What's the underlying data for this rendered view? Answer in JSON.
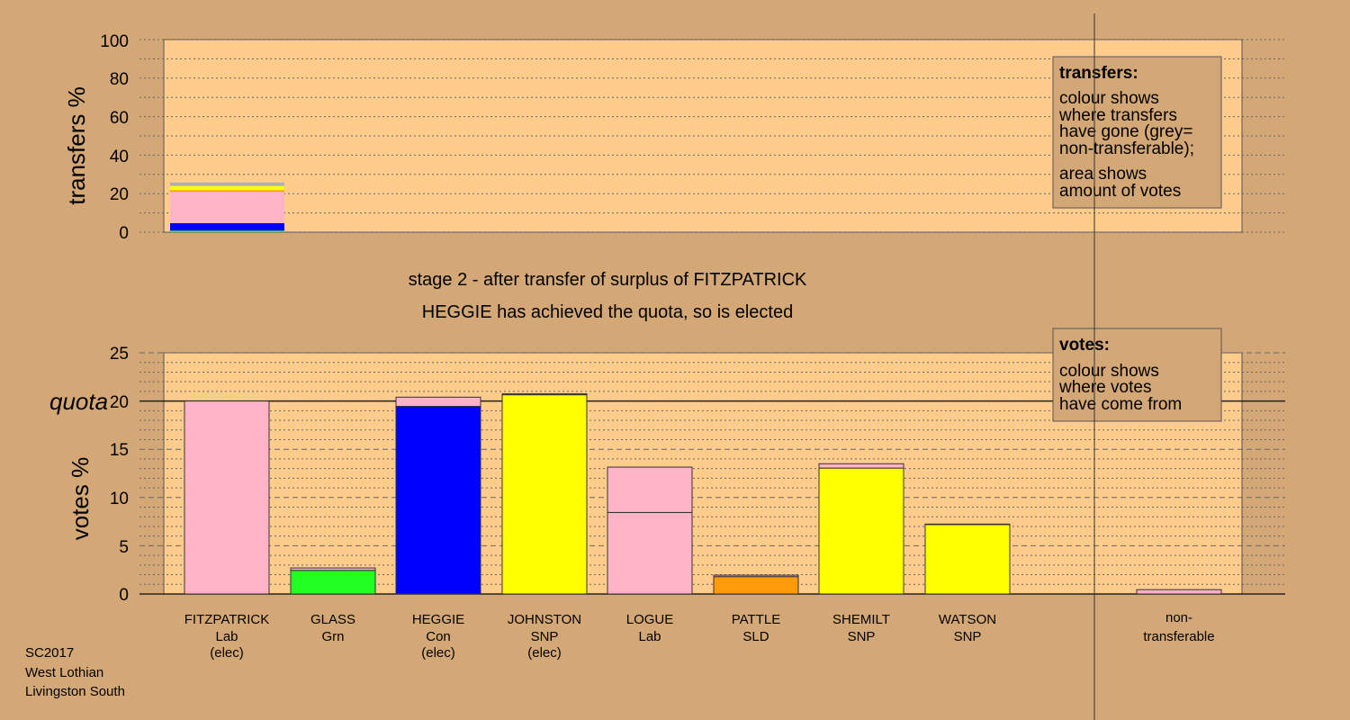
{
  "colors": {
    "background": "#D4A876",
    "plot_area": "#FFCC8C",
    "Lab": "#FFB3C6",
    "Con": "#0000FF",
    "SNP": "#FFFF00",
    "Grn": "#22FF22",
    "SLD": "#FF9A08",
    "nontransferable": "#B0B0B0"
  },
  "top_panel": {
    "ylabel": "transfers %",
    "ticks": [
      "0",
      "20",
      "40",
      "60",
      "80",
      "100"
    ]
  },
  "bottom_panel": {
    "ylabel": "votes %",
    "quota_label": "quota",
    "ticks": [
      "0",
      "5",
      "10",
      "15",
      "20",
      "25"
    ]
  },
  "stage_text": {
    "line1": "stage 2 - after transfer of surplus of FITZPATRICK",
    "line2": "HEGGIE has achieved the quota, so is elected"
  },
  "legend_transfers": {
    "title": "transfers:",
    "lines": [
      "colour shows",
      "where transfers",
      "have gone (grey=",
      "non-transferable);",
      "area shows",
      "amount of votes"
    ]
  },
  "legend_votes": {
    "title": "votes:",
    "lines": [
      "colour shows",
      "where votes",
      "have come from"
    ]
  },
  "candidates": [
    {
      "name": "FITZPATRICK",
      "party": "Lab",
      "status": "(elec)"
    },
    {
      "name": "GLASS",
      "party": "Grn",
      "status": ""
    },
    {
      "name": "HEGGIE",
      "party": "Con",
      "status": "(elec)"
    },
    {
      "name": "JOHNSTON",
      "party": "SNP",
      "status": "(elec)"
    },
    {
      "name": "LOGUE",
      "party": "Lab",
      "status": ""
    },
    {
      "name": "PATTLE",
      "party": "SLD",
      "status": ""
    },
    {
      "name": "SHEMILT",
      "party": "SNP",
      "status": ""
    },
    {
      "name": "WATSON",
      "party": "SNP",
      "status": ""
    }
  ],
  "nontransferable_label": [
    "non-",
    "transferable"
  ],
  "footer": [
    "SC2017",
    "West Lothian",
    "Livingston South"
  ],
  "chart_data": [
    {
      "type": "bar",
      "panel": "transfers",
      "ylabel": "transfers %",
      "ylim": [
        0,
        100
      ],
      "categories": [
        "FITZPATRICK"
      ],
      "series": [
        {
          "name": "Grn",
          "color": "#22FF22",
          "values": [
            0.8
          ]
        },
        {
          "name": "Con",
          "color": "#0000FF",
          "values": [
            3.9
          ]
        },
        {
          "name": "Lab",
          "color": "#FFB3C6",
          "values": [
            16.3
          ]
        },
        {
          "name": "SLD",
          "color": "#FF9A08",
          "values": [
            0.8
          ]
        },
        {
          "name": "SNP",
          "color": "#FFFF00",
          "values": [
            2.2
          ]
        },
        {
          "name": "non-transferable",
          "color": "#B0B0B0",
          "values": [
            1.8
          ]
        }
      ]
    },
    {
      "type": "bar",
      "panel": "votes",
      "ylabel": "votes %",
      "ylim": [
        0,
        25
      ],
      "quota": 20.0,
      "categories": [
        "FITZPATRICK",
        "GLASS",
        "HEGGIE",
        "JOHNSTON",
        "LOGUE",
        "PATTLE",
        "SHEMILT",
        "WATSON",
        "non-transferable"
      ],
      "stacks": [
        [
          {
            "party": "Lab",
            "value": 20.0
          }
        ],
        [
          {
            "party": "Grn",
            "value": 2.45
          },
          {
            "party": "Lab",
            "value": 0.25
          }
        ],
        [
          {
            "party": "Con",
            "value": 19.45
          },
          {
            "party": "Lab",
            "value": 0.95
          }
        ],
        [
          {
            "party": "SNP",
            "value": 20.65
          },
          {
            "party": "Lab",
            "value": 0.1
          }
        ],
        [
          {
            "party": "Lab",
            "value": 8.45
          },
          {
            "party": "Lab",
            "value": 4.7
          }
        ],
        [
          {
            "party": "SLD",
            "value": 1.8
          },
          {
            "party": "Lab",
            "value": 0.15
          }
        ],
        [
          {
            "party": "SNP",
            "value": 13.05
          },
          {
            "party": "Lab",
            "value": 0.45
          }
        ],
        [
          {
            "party": "SNP",
            "value": 7.2
          },
          {
            "party": "Lab",
            "value": 0.05
          }
        ],
        [
          {
            "party": "Lab",
            "value": 0.45
          }
        ]
      ]
    }
  ]
}
